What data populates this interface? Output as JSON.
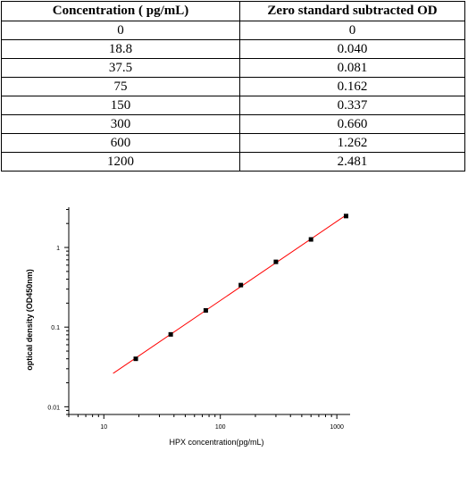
{
  "table": {
    "headers": [
      "Concentration ( pg/mL)",
      "Zero standard subtracted OD"
    ],
    "rows": [
      [
        "0",
        "0"
      ],
      [
        "18.8",
        "0.040"
      ],
      [
        "37.5",
        "0.081"
      ],
      [
        "75",
        "0.162"
      ],
      [
        "150",
        "0.337"
      ],
      [
        "300",
        "0.660"
      ],
      [
        "600",
        "1.262"
      ],
      [
        "1200",
        "2.481"
      ]
    ]
  },
  "chart_data": {
    "type": "scatter",
    "xscale": "log",
    "yscale": "log",
    "xlabel": "HPX concentration(pg/mL)",
    "ylabel": "optical density (OD450nm)",
    "xlim": [
      5,
      1300
    ],
    "ylim": [
      0.008,
      3.2
    ],
    "xticks": [
      "10",
      "100",
      "1000"
    ],
    "yticks": [
      "0.01",
      "0.1",
      "1"
    ],
    "grid": false,
    "series": [
      {
        "x": [
          18.8,
          37.5,
          75,
          150,
          300,
          600,
          1200
        ],
        "y": [
          0.04,
          0.081,
          0.162,
          0.337,
          0.66,
          1.262,
          2.481
        ],
        "marker_color": "#000000"
      }
    ],
    "fit_line": {
      "x_range": [
        12,
        1200
      ],
      "color": "#ff0000"
    }
  }
}
